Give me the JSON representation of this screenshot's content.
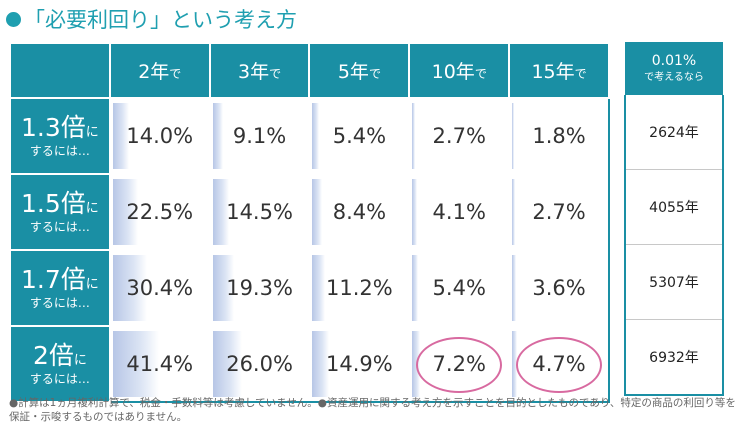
{
  "title": "「必要利回り」という考え方",
  "columns": [
    {
      "num": "2年",
      "suffix": "で"
    },
    {
      "num": "3年",
      "suffix": "で"
    },
    {
      "num": "5年",
      "suffix": "で"
    },
    {
      "num": "10年",
      "suffix": "で"
    },
    {
      "num": "15年",
      "suffix": "で"
    }
  ],
  "extra_column": {
    "main": "0.01%",
    "sub": "で考えるなら"
  },
  "rows": [
    {
      "multiplier": "1.3倍",
      "ni": "に",
      "sub": "するには…",
      "values": [
        "14.0%",
        "9.1%",
        "5.4%",
        "2.7%",
        "1.8%"
      ],
      "fill": [
        14.0,
        9.1,
        5.4,
        2.7,
        1.8
      ],
      "years": "2624年"
    },
    {
      "multiplier": "1.5倍",
      "ni": "に",
      "sub": "するには…",
      "values": [
        "22.5%",
        "14.5%",
        "8.4%",
        "4.1%",
        "2.7%"
      ],
      "fill": [
        22.5,
        14.5,
        8.4,
        4.1,
        2.7
      ],
      "years": "4055年"
    },
    {
      "multiplier": "1.7倍",
      "ni": "に",
      "sub": "するには…",
      "values": [
        "30.4%",
        "19.3%",
        "11.2%",
        "5.4%",
        "3.6%"
      ],
      "fill": [
        30.4,
        19.3,
        11.2,
        5.4,
        3.6
      ],
      "years": "5307年"
    },
    {
      "multiplier": "2倍",
      "ni": "に",
      "sub": "するには…",
      "values": [
        "41.4%",
        "26.0%",
        "14.9%",
        "7.2%",
        "4.7%"
      ],
      "fill": [
        41.4,
        26.0,
        14.9,
        7.2,
        4.7
      ],
      "years": "6932年"
    }
  ],
  "highlighted": [
    [
      3,
      3
    ],
    [
      3,
      4
    ]
  ],
  "colors": {
    "header": "#1a8fa4",
    "title": "#1f9fb0",
    "ring": "#d86aa0",
    "bar": "#b7c6e6"
  },
  "note": "●計算は1ヵ月複利計算で、税金・手数料等は考慮していません。●資産運用に関する考え方を示すことを目的としたものであり、特定の商品の利回り等を保証・示唆するものではありません。"
}
